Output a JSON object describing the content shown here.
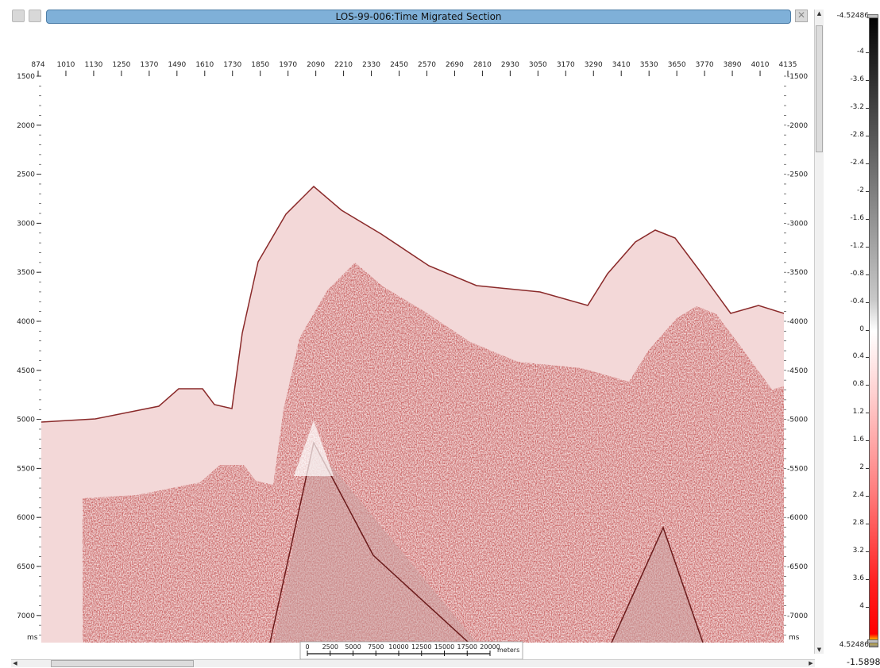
{
  "window": {
    "title": "LOS-99-006:Time Migrated Section"
  },
  "icons": {
    "left_icon_1": "settings-gear-icon",
    "left_icon_2": "tool-icon",
    "close": "close-icon"
  },
  "section": {
    "trace_ticks": [
      "874",
      "1010",
      "1130",
      "1250",
      "1370",
      "1490",
      "1610",
      "1730",
      "1850",
      "1970",
      "2090",
      "2210",
      "2330",
      "2450",
      "2570",
      "2690",
      "2810",
      "2930",
      "3050",
      "3170",
      "3290",
      "3410",
      "3530",
      "3650",
      "3770",
      "3890",
      "4010",
      "4135"
    ],
    "time_ticks_left": [
      "1500",
      "2000",
      "2500",
      "3000",
      "3500",
      "4000",
      "4500",
      "5000",
      "5500",
      "6000",
      "6500",
      "7000"
    ],
    "time_ticks_right": [
      "1500",
      "2000",
      "2500",
      "3000",
      "3500",
      "4000",
      "4500",
      "5000",
      "5500",
      "6000",
      "6500",
      "7000"
    ],
    "time_unit": "ms",
    "scale_bar": {
      "labels": [
        "0",
        "2500",
        "5000",
        "7500",
        "10000",
        "12500",
        "15000",
        "17500",
        "20000"
      ],
      "unit": "meters"
    }
  },
  "colorbar": {
    "max": "-4.52486",
    "min": "4.52486",
    "labels": [
      "-4",
      "-3.6",
      "-3.2",
      "-2.8",
      "-2.4",
      "-2",
      "-1.6",
      "-1.2",
      "-0.8",
      "-0.4",
      "0",
      "0.4",
      "0.8",
      "1.2",
      "1.6",
      "2",
      "2.4",
      "2.8",
      "3.2",
      "3.6",
      "4"
    ],
    "readout": "-1.58981",
    "colors": {
      "negative": "#000000",
      "mid": "#ffffff",
      "positive": "#ff0000"
    }
  }
}
